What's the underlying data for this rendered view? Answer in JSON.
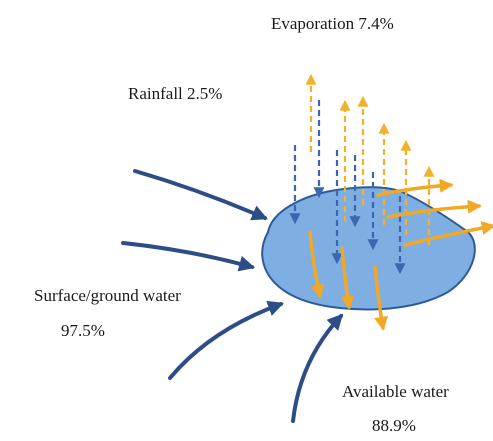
{
  "labels": {
    "evaporation": "Evaporation 7.4%",
    "rainfall": "Rainfall 2.5%",
    "surface_line1": "Surface/ground water",
    "surface_line2": "97.5%",
    "available_line1": "Available water",
    "available_line2": "88.9%"
  },
  "colors": {
    "lake_fill": "#7faee3",
    "lake_stroke": "#2e5b97",
    "inflow_arrow": "#2e4d86",
    "rain_arrow": "#3a67b0",
    "evaporation_arrow": "#f3b12b",
    "available_arrow": "#f0a825"
  }
}
